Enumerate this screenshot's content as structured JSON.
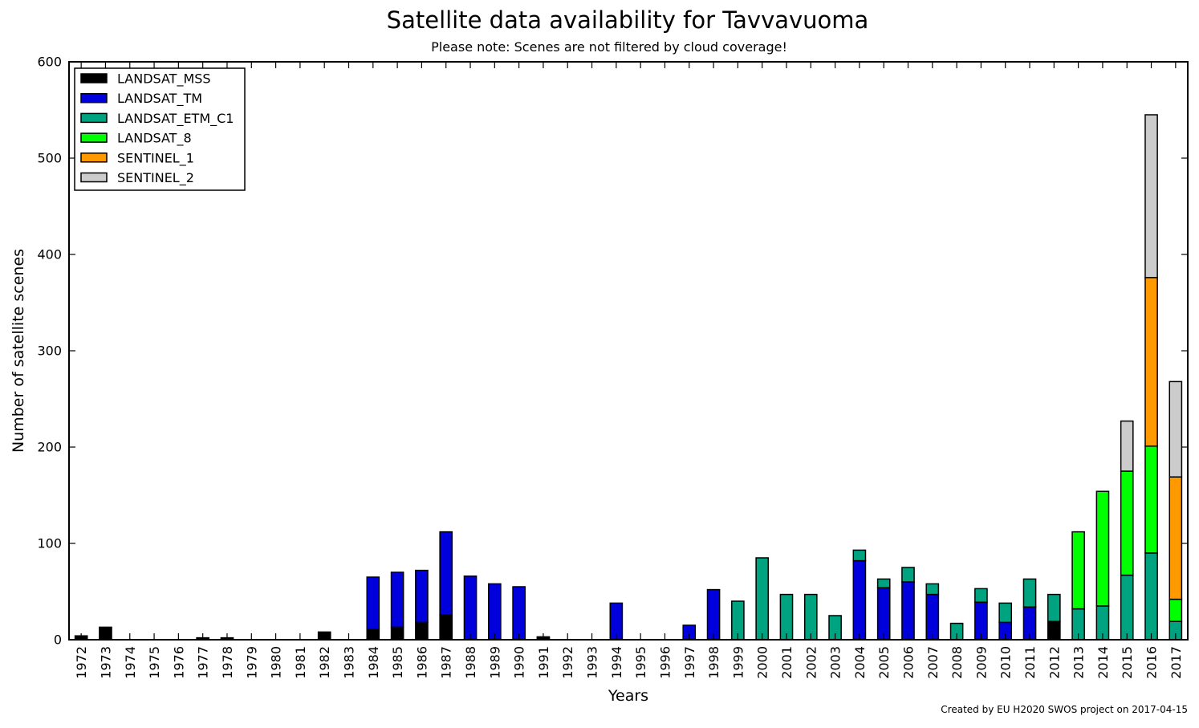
{
  "chart_data": {
    "type": "bar",
    "stacked": true,
    "title": "Satellite data availability for Tavvavuoma",
    "subtitle": "Please note: Scenes are not filtered by cloud coverage!",
    "xlabel": "Years",
    "ylabel": "Number of satellite scenes",
    "ylim": [
      0,
      600
    ],
    "yticks": [
      0,
      100,
      200,
      300,
      400,
      500,
      600
    ],
    "grid": false,
    "legend_position": "top-left",
    "credit": "Created by EU H2020 SWOS project on 2017-04-15",
    "categories": [
      "1972",
      "1973",
      "1974",
      "1975",
      "1976",
      "1977",
      "1978",
      "1979",
      "1980",
      "1981",
      "1982",
      "1983",
      "1984",
      "1985",
      "1986",
      "1987",
      "1988",
      "1989",
      "1990",
      "1991",
      "1992",
      "1993",
      "1994",
      "1995",
      "1996",
      "1997",
      "1998",
      "1999",
      "2000",
      "2001",
      "2002",
      "2003",
      "2004",
      "2005",
      "2006",
      "2007",
      "2008",
      "2009",
      "2010",
      "2011",
      "2012",
      "2013",
      "2014",
      "2015",
      "2016",
      "2017"
    ],
    "series": [
      {
        "name": "LANDSAT_MSS",
        "color": "#000000",
        "values": [
          4,
          13,
          0,
          0,
          0,
          2,
          2,
          0,
          0,
          0,
          8,
          0,
          11,
          13,
          18,
          26,
          0,
          0,
          0,
          2,
          0,
          0,
          0,
          0,
          0,
          0,
          0,
          0,
          0,
          0,
          0,
          0,
          0,
          0,
          0,
          0,
          0,
          0,
          0,
          0,
          19,
          0,
          0,
          0,
          0,
          0
        ]
      },
      {
        "name": "LANDSAT_TM",
        "color": "#0000dd",
        "values": [
          0,
          0,
          0,
          0,
          0,
          0,
          0,
          0,
          0,
          0,
          0,
          0,
          54,
          57,
          54,
          86,
          66,
          58,
          55,
          1,
          0,
          0,
          38,
          0,
          0,
          15,
          52,
          0,
          0,
          0,
          0,
          0,
          82,
          54,
          60,
          47,
          0,
          39,
          18,
          34,
          0,
          0,
          0,
          0,
          0,
          0
        ]
      },
      {
        "name": "LANDSAT_ETM_C1",
        "color": "#00a380",
        "values": [
          0,
          0,
          0,
          0,
          0,
          0,
          0,
          0,
          0,
          0,
          0,
          0,
          0,
          0,
          0,
          0,
          0,
          0,
          0,
          0,
          0,
          0,
          0,
          0,
          0,
          0,
          0,
          40,
          85,
          47,
          47,
          25,
          11,
          9,
          15,
          11,
          17,
          14,
          20,
          29,
          28,
          32,
          35,
          67,
          90,
          19
        ]
      },
      {
        "name": "LANDSAT_8",
        "color": "#00ff00",
        "values": [
          0,
          0,
          0,
          0,
          0,
          0,
          0,
          0,
          0,
          0,
          0,
          0,
          0,
          0,
          0,
          0,
          0,
          0,
          0,
          0,
          0,
          0,
          0,
          0,
          0,
          0,
          0,
          0,
          0,
          0,
          0,
          0,
          0,
          0,
          0,
          0,
          0,
          0,
          0,
          0,
          0,
          80,
          119,
          108,
          111,
          23
        ]
      },
      {
        "name": "SENTINEL_1",
        "color": "#ff9900",
        "values": [
          0,
          0,
          0,
          0,
          0,
          0,
          0,
          0,
          0,
          0,
          0,
          0,
          0,
          0,
          0,
          0,
          0,
          0,
          0,
          0,
          0,
          0,
          0,
          0,
          0,
          0,
          0,
          0,
          0,
          0,
          0,
          0,
          0,
          0,
          0,
          0,
          0,
          0,
          0,
          0,
          0,
          0,
          0,
          0,
          175,
          127
        ]
      },
      {
        "name": "SENTINEL_2",
        "color": "#cccccc",
        "values": [
          0,
          0,
          0,
          0,
          0,
          0,
          0,
          0,
          0,
          0,
          0,
          0,
          0,
          0,
          0,
          0,
          0,
          0,
          0,
          0,
          0,
          0,
          0,
          0,
          0,
          0,
          0,
          0,
          0,
          0,
          0,
          0,
          0,
          0,
          0,
          0,
          0,
          0,
          0,
          0,
          0,
          0,
          0,
          52,
          169,
          99
        ]
      }
    ]
  }
}
